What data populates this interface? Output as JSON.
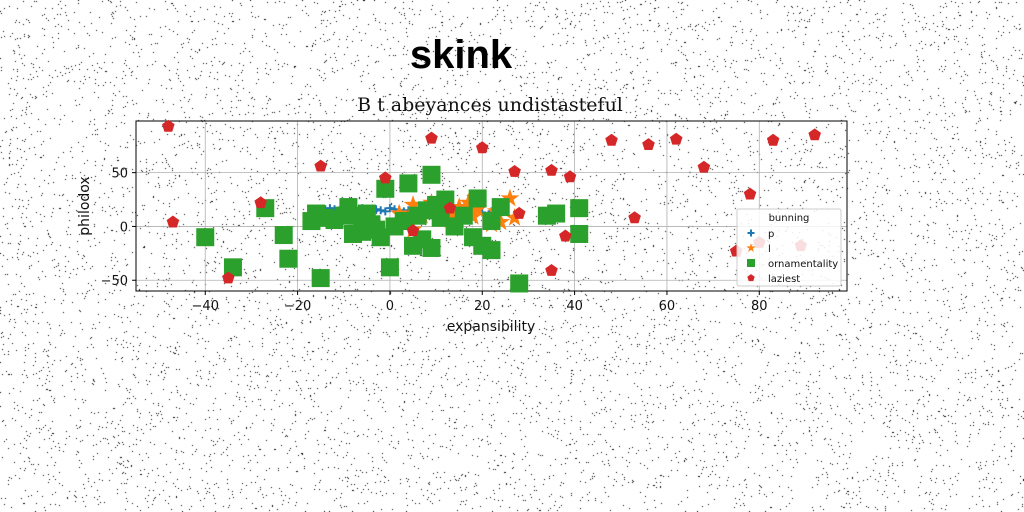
{
  "chart_data": {
    "type": "scatter",
    "suptitle": "skink",
    "title": "B t abeyances undistasteful",
    "xlabel": "expansibility",
    "ylabel": "philodox",
    "xlim": [
      -55,
      99
    ],
    "ylim": [
      -60,
      98
    ],
    "xticks": [
      -40,
      -20,
      0,
      20,
      40,
      60,
      80
    ],
    "yticks": [
      -50,
      0,
      50
    ],
    "grid": true,
    "legend": {
      "title": "bunning",
      "placement": "lower-right"
    },
    "series": [
      {
        "name": "p",
        "marker": "plus",
        "color": "#1f77b4",
        "points": [
          [
            -14,
            16
          ],
          [
            -13,
            17
          ],
          [
            -12,
            16
          ],
          [
            -11,
            15
          ],
          [
            -10,
            15
          ],
          [
            -9,
            14
          ],
          [
            -8,
            16
          ],
          [
            -6,
            17
          ],
          [
            -5,
            14
          ],
          [
            -4,
            15
          ],
          [
            -3,
            16
          ],
          [
            -2,
            15
          ],
          [
            -1,
            14
          ],
          [
            0,
            17
          ],
          [
            1,
            16
          ],
          [
            2,
            15
          ],
          [
            3,
            14
          ],
          [
            4,
            15
          ],
          [
            5,
            14
          ],
          [
            6,
            15
          ],
          [
            7,
            14
          ],
          [
            8,
            16
          ],
          [
            9,
            12
          ],
          [
            10,
            13
          ],
          [
            11,
            10
          ],
          [
            12,
            12
          ],
          [
            13,
            11
          ],
          [
            14,
            12
          ],
          [
            15,
            10
          ],
          [
            16,
            11
          ],
          [
            18,
            12
          ],
          [
            20,
            13
          ],
          [
            22,
            14
          ],
          [
            24,
            11
          ]
        ]
      },
      {
        "name": "l",
        "marker": "star",
        "color": "#ff7f0e",
        "points": [
          [
            2,
            12
          ],
          [
            5,
            20
          ],
          [
            7,
            10
          ],
          [
            9,
            22
          ],
          [
            11,
            17
          ],
          [
            13,
            6
          ],
          [
            14,
            10
          ],
          [
            15,
            18
          ],
          [
            16,
            14
          ],
          [
            17,
            22
          ],
          [
            18,
            9
          ],
          [
            19,
            16
          ],
          [
            22,
            8
          ],
          [
            22,
            2
          ],
          [
            23,
            14
          ],
          [
            24,
            4
          ],
          [
            26,
            26
          ],
          [
            27,
            8
          ],
          [
            5,
            -3
          ]
        ]
      },
      {
        "name": "ornamentality",
        "marker": "square",
        "color": "#2ca02c",
        "points": [
          [
            -40,
            -10
          ],
          [
            -34,
            -38
          ],
          [
            -27,
            17
          ],
          [
            -23,
            -8
          ],
          [
            -22,
            -30
          ],
          [
            -17,
            5
          ],
          [
            -16,
            12
          ],
          [
            -15,
            -48
          ],
          [
            -14,
            8
          ],
          [
            -12,
            6
          ],
          [
            -10,
            10
          ],
          [
            -9,
            18
          ],
          [
            -8,
            -7
          ],
          [
            -7,
            10
          ],
          [
            -6,
            -5
          ],
          [
            -5,
            12
          ],
          [
            -4,
            2
          ],
          [
            -3,
            -3
          ],
          [
            -2,
            -10
          ],
          [
            -1,
            35
          ],
          [
            0,
            -38
          ],
          [
            1,
            0
          ],
          [
            3,
            5
          ],
          [
            4,
            40
          ],
          [
            5,
            -18
          ],
          [
            6,
            10
          ],
          [
            7,
            -12
          ],
          [
            8,
            15
          ],
          [
            9,
            -20
          ],
          [
            9,
            48
          ],
          [
            10,
            20
          ],
          [
            11,
            8
          ],
          [
            12,
            25
          ],
          [
            14,
            0
          ],
          [
            16,
            10
          ],
          [
            18,
            -10
          ],
          [
            19,
            26
          ],
          [
            20,
            -18
          ],
          [
            22,
            5
          ],
          [
            22,
            -22
          ],
          [
            24,
            18
          ],
          [
            28,
            -53
          ],
          [
            34,
            10
          ],
          [
            36,
            12
          ],
          [
            41,
            17
          ],
          [
            41,
            -7
          ]
        ]
      },
      {
        "name": "laziest",
        "marker": "pentagon",
        "color": "#d62728",
        "points": [
          [
            -48,
            93
          ],
          [
            -47,
            4
          ],
          [
            -35,
            -48
          ],
          [
            -28,
            22
          ],
          [
            -15,
            56
          ],
          [
            -1,
            45
          ],
          [
            5,
            -4
          ],
          [
            9,
            82
          ],
          [
            13,
            17
          ],
          [
            20,
            73
          ],
          [
            27,
            51
          ],
          [
            28,
            12
          ],
          [
            35,
            52
          ],
          [
            35,
            -41
          ],
          [
            38,
            -9
          ],
          [
            39,
            46
          ],
          [
            48,
            80
          ],
          [
            53,
            8
          ],
          [
            56,
            76
          ],
          [
            62,
            81
          ],
          [
            68,
            55
          ],
          [
            75,
            -23
          ],
          [
            78,
            30
          ],
          [
            80,
            -15
          ],
          [
            83,
            80
          ],
          [
            89,
            -18
          ],
          [
            92,
            85
          ]
        ]
      }
    ]
  }
}
